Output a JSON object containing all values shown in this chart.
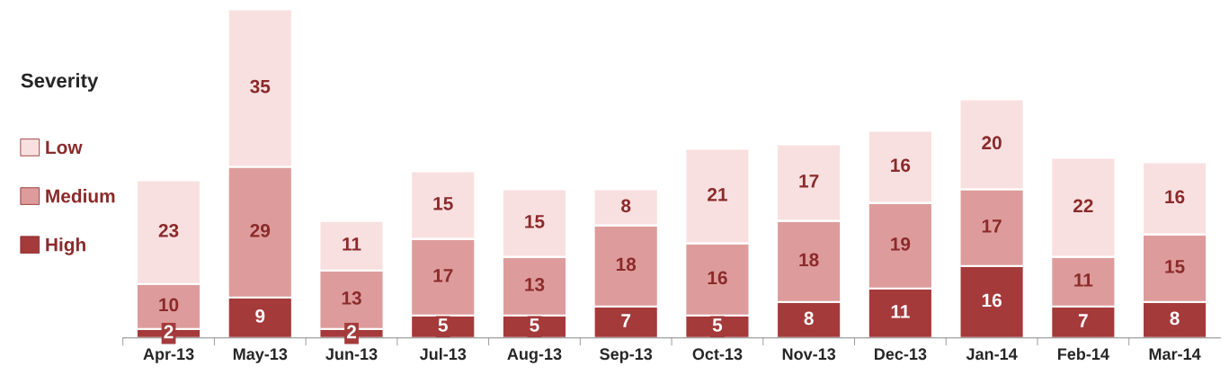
{
  "chart_data": {
    "type": "bar",
    "stacked": true,
    "data_labels": true,
    "legend": "left",
    "legend_title": "Severity",
    "grid": false,
    "categories": [
      "Apr-13",
      "May-13",
      "Jun-13",
      "Jul-13",
      "Aug-13",
      "Sep-13",
      "Oct-13",
      "Nov-13",
      "Dec-13",
      "Jan-14",
      "Feb-14",
      "Mar-14"
    ],
    "series": [
      {
        "name": "High",
        "color": "#a53a3b",
        "values": [
          2,
          9,
          2,
          5,
          5,
          7,
          5,
          8,
          11,
          16,
          7,
          8
        ]
      },
      {
        "name": "Medium",
        "color": "#dd9c9b",
        "values": [
          10,
          29,
          13,
          17,
          13,
          18,
          16,
          18,
          19,
          17,
          11,
          15
        ]
      },
      {
        "name": "Low",
        "color": "#f9e0e0",
        "values": [
          23,
          35,
          11,
          15,
          15,
          8,
          21,
          17,
          16,
          20,
          22,
          16
        ]
      }
    ]
  }
}
